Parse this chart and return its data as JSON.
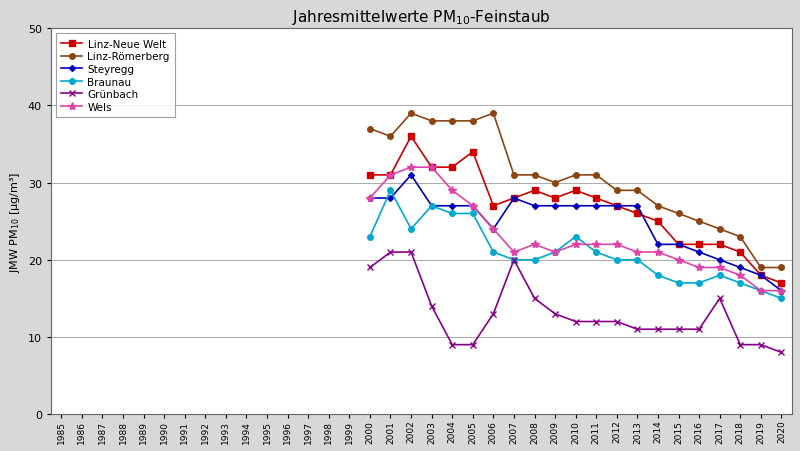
{
  "title": "Jahresmittelwerte PM$_{10}$-Feinstaub",
  "ylabel": "JMW PM₁₀ [μg/m³]",
  "ylim": [
    0,
    50
  ],
  "yticks": [
    0,
    10,
    20,
    30,
    40,
    50
  ],
  "series": [
    {
      "name": "Linz-Neue Welt",
      "color": "#cc0000",
      "marker": "s",
      "years": [
        2000,
        2001,
        2002,
        2003,
        2004,
        2005,
        2006,
        2007,
        2008,
        2009,
        2010,
        2011,
        2012,
        2013,
        2014,
        2015,
        2016,
        2017,
        2018,
        2019,
        2020
      ],
      "values": [
        31,
        31,
        36,
        32,
        32,
        34,
        27,
        28,
        29,
        28,
        29,
        28,
        27,
        26,
        25,
        22,
        22,
        22,
        21,
        18,
        17
      ]
    },
    {
      "name": "Linz-Römerberg",
      "color": "#8B4513",
      "marker": "o",
      "years": [
        2000,
        2001,
        2002,
        2003,
        2004,
        2005,
        2006,
        2007,
        2008,
        2009,
        2010,
        2011,
        2012,
        2013,
        2014,
        2015,
        2016,
        2017,
        2018,
        2019,
        2020
      ],
      "values": [
        37,
        36,
        39,
        38,
        38,
        38,
        39,
        31,
        31,
        30,
        31,
        31,
        29,
        29,
        27,
        26,
        25,
        24,
        23,
        19,
        19
      ]
    },
    {
      "name": "Steyregg",
      "color": "#0000bb",
      "marker": "D",
      "years": [
        2000,
        2001,
        2002,
        2003,
        2004,
        2005,
        2006,
        2007,
        2008,
        2009,
        2010,
        2011,
        2012,
        2013,
        2014,
        2015,
        2016,
        2017,
        2018,
        2019,
        2020
      ],
      "values": [
        28,
        28,
        31,
        27,
        27,
        27,
        24,
        28,
        27,
        27,
        27,
        27,
        27,
        27,
        22,
        22,
        21,
        20,
        19,
        18,
        16
      ]
    },
    {
      "name": "Braunau",
      "color": "#00aacc",
      "marker": "o",
      "years": [
        2000,
        2001,
        2002,
        2003,
        2004,
        2005,
        2006,
        2007,
        2008,
        2009,
        2010,
        2011,
        2012,
        2013,
        2014,
        2015,
        2016,
        2017,
        2018,
        2019,
        2020
      ],
      "values": [
        23,
        29,
        24,
        27,
        26,
        26,
        21,
        20,
        20,
        21,
        23,
        21,
        20,
        20,
        18,
        17,
        17,
        18,
        17,
        16,
        15
      ]
    },
    {
      "name": "Grünbach",
      "color": "#880088",
      "marker": "x",
      "years": [
        2000,
        2001,
        2002,
        2003,
        2004,
        2005,
        2006,
        2007,
        2008,
        2009,
        2010,
        2011,
        2012,
        2013,
        2014,
        2015,
        2016,
        2017,
        2018,
        2019,
        2020
      ],
      "values": [
        19,
        21,
        21,
        14,
        9,
        9,
        13,
        20,
        15,
        13,
        12,
        12,
        12,
        11,
        11,
        11,
        11,
        15,
        9,
        9,
        8
      ]
    },
    {
      "name": "Wels",
      "color": "#dd44aa",
      "marker": "*",
      "years": [
        2000,
        2001,
        2002,
        2003,
        2004,
        2005,
        2006,
        2007,
        2008,
        2009,
        2010,
        2011,
        2012,
        2013,
        2014,
        2015,
        2016,
        2017,
        2018,
        2019,
        2020
      ],
      "values": [
        28,
        31,
        32,
        32,
        29,
        27,
        24,
        21,
        22,
        21,
        22,
        22,
        22,
        21,
        21,
        20,
        19,
        19,
        18,
        16,
        16
      ]
    }
  ],
  "xlim": [
    1984.5,
    2020.5
  ],
  "xtick_years": [
    1985,
    1986,
    1987,
    1988,
    1989,
    1990,
    1991,
    1992,
    1993,
    1994,
    1995,
    1996,
    1997,
    1998,
    1999,
    2000,
    2001,
    2002,
    2003,
    2004,
    2005,
    2006,
    2007,
    2008,
    2009,
    2010,
    2011,
    2012,
    2013,
    2014,
    2015,
    2016,
    2017,
    2018,
    2019,
    2020
  ],
  "outer_bg": "#d8d8d8",
  "plot_bg": "#ffffff",
  "figure_bg": "#d8d8d8",
  "border_color": "#999999"
}
